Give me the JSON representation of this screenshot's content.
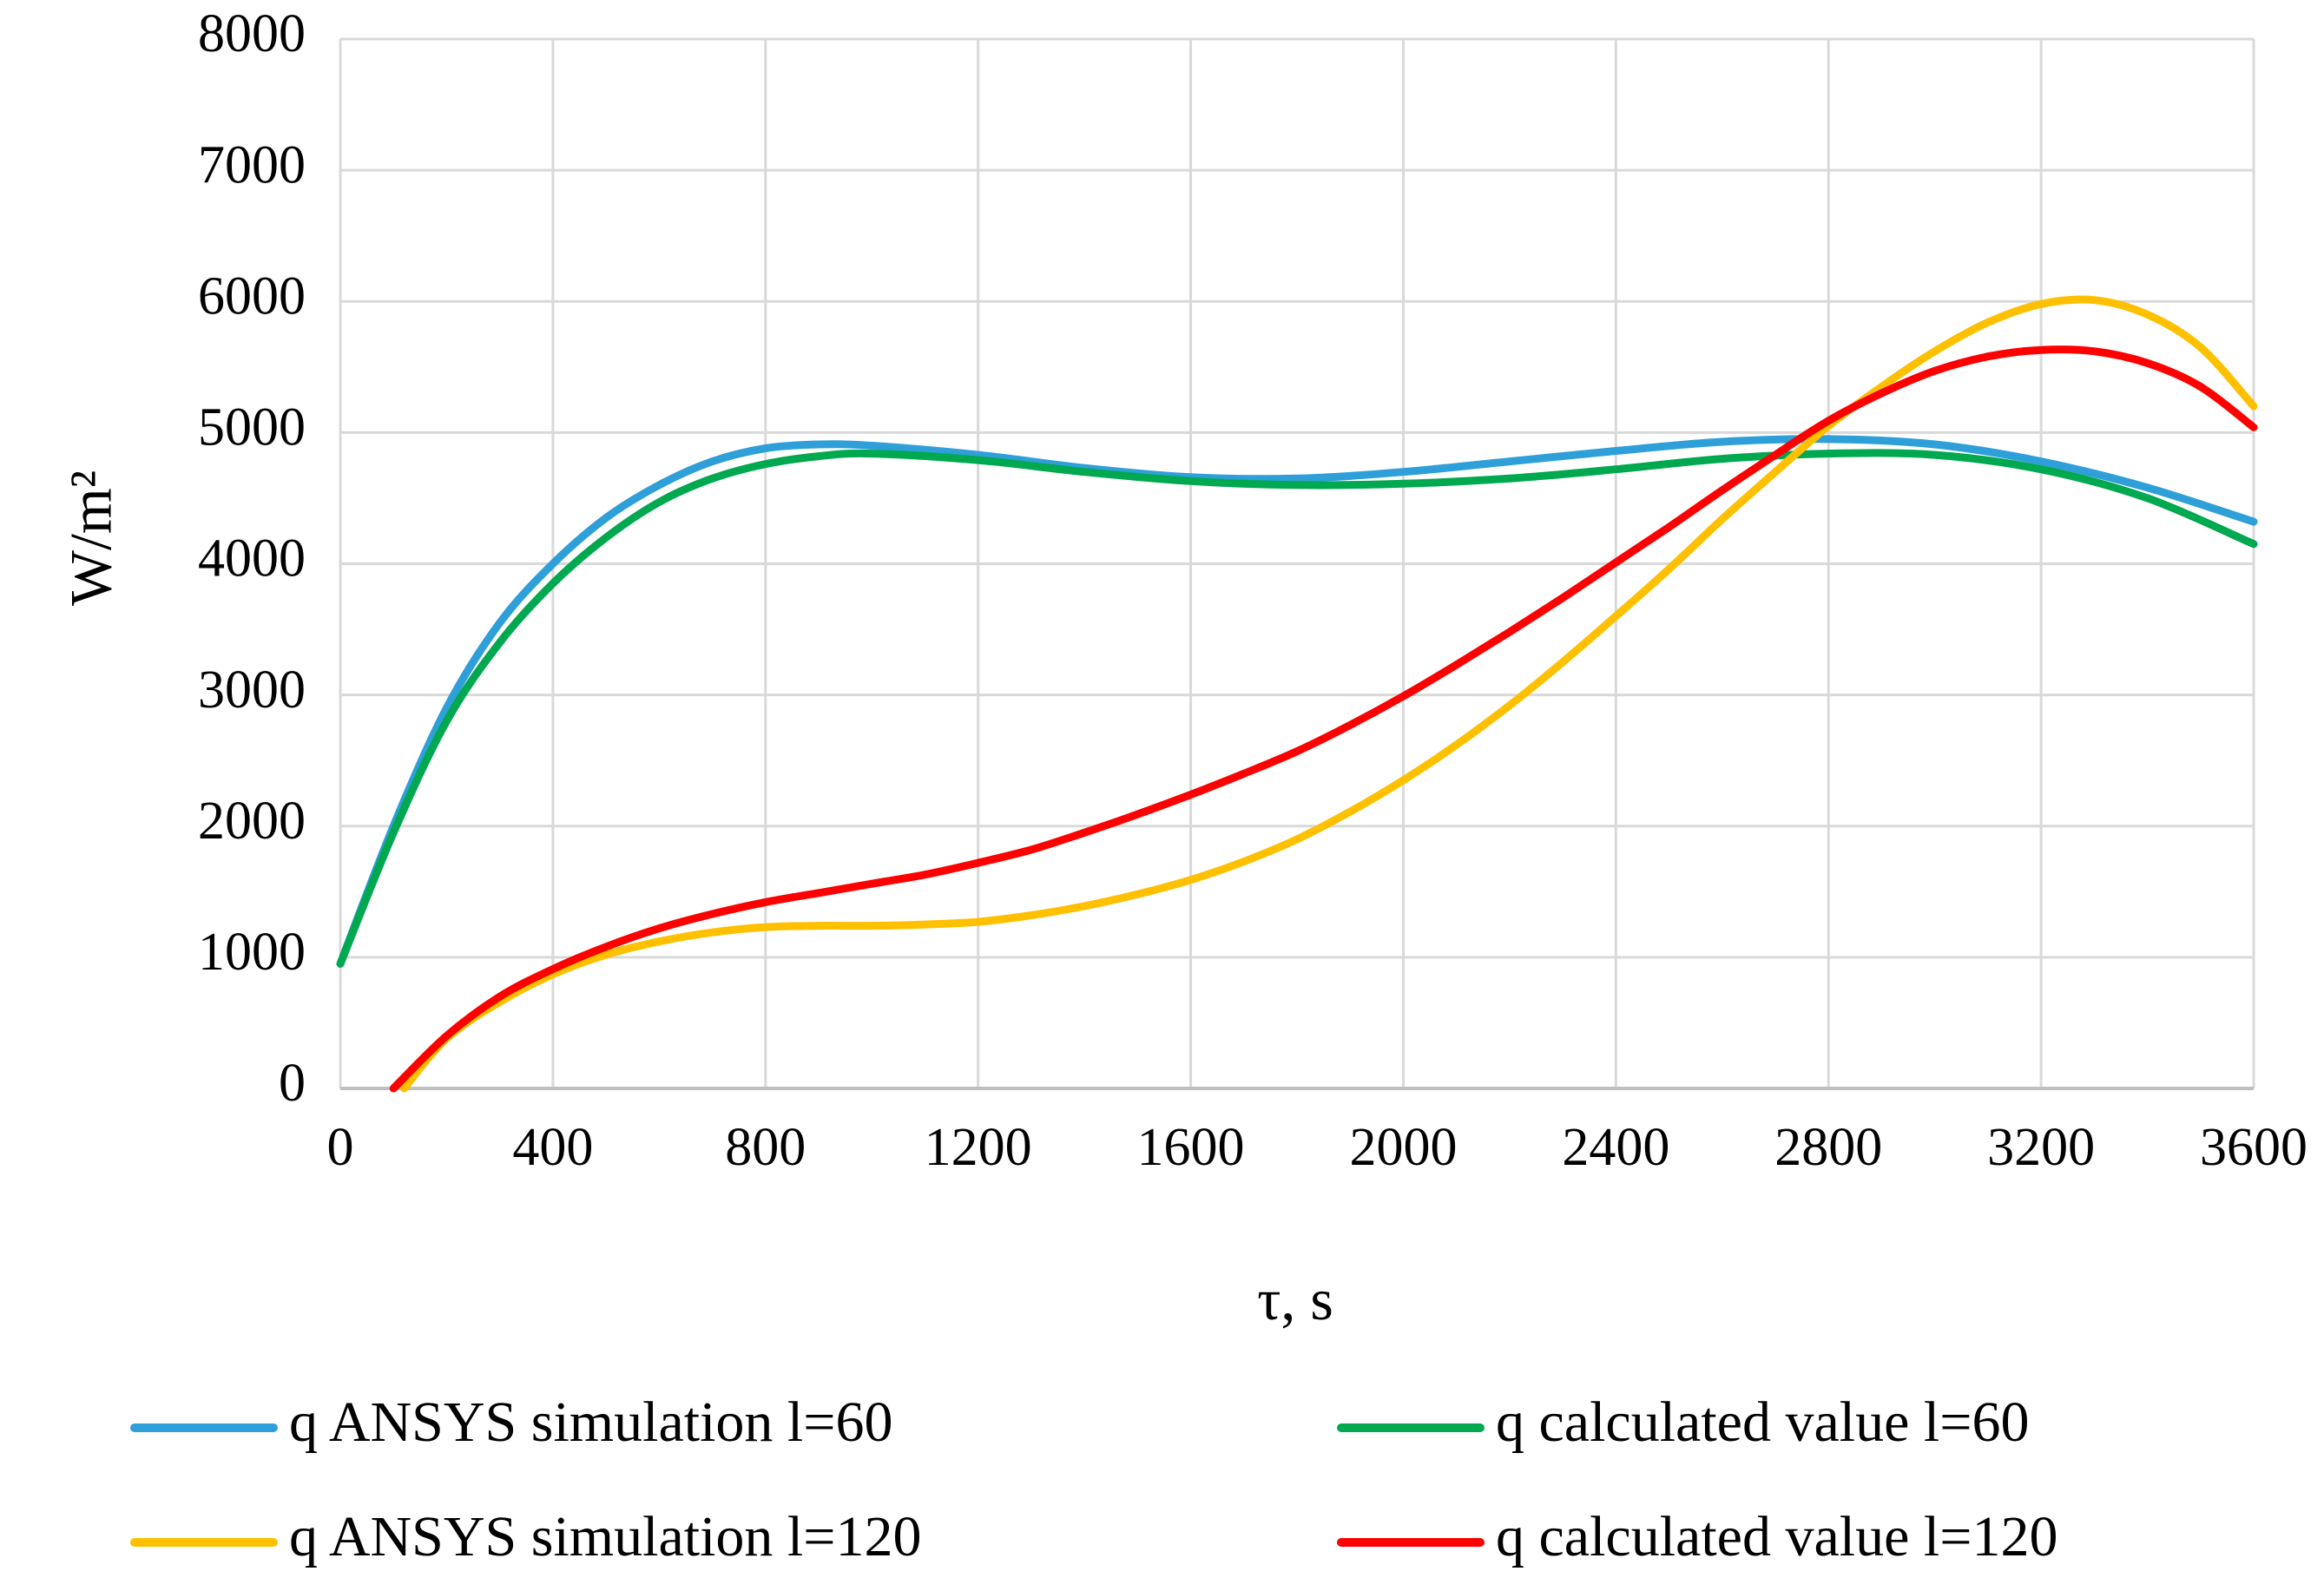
{
  "chart_data": {
    "type": "line",
    "title": "",
    "xlabel": "τ, s",
    "ylabel": "W/m²",
    "xlim": [
      0,
      3600
    ],
    "ylim": [
      0,
      8000
    ],
    "xticks": [
      0,
      400,
      800,
      1200,
      1600,
      2000,
      2400,
      2800,
      3200,
      3600
    ],
    "yticks": [
      0,
      1000,
      2000,
      3000,
      4000,
      5000,
      6000,
      7000,
      8000
    ],
    "grid": true,
    "legend_position": "bottom",
    "series": [
      {
        "name": "q ANSYS simulation l=60",
        "color": "#2e9fd8",
        "x": [
          0,
          100,
          200,
          300,
          400,
          500,
          600,
          700,
          800,
          900,
          1000,
          1200,
          1400,
          1600,
          1800,
          2000,
          2200,
          2400,
          2600,
          2800,
          3000,
          3200,
          3400,
          3600
        ],
        "y": [
          950,
          2000,
          2900,
          3550,
          4000,
          4350,
          4600,
          4780,
          4880,
          4910,
          4900,
          4830,
          4730,
          4660,
          4650,
          4700,
          4780,
          4860,
          4930,
          4950,
          4910,
          4780,
          4580,
          4320
        ]
      },
      {
        "name": "q calculated value l=60",
        "color": "#00a84f",
        "x": [
          0,
          100,
          200,
          300,
          400,
          500,
          600,
          700,
          800,
          900,
          1000,
          1200,
          1400,
          1600,
          1800,
          2000,
          2200,
          2400,
          2600,
          2800,
          3000,
          3200,
          3400,
          3600
        ],
        "y": [
          950,
          1950,
          2800,
          3400,
          3850,
          4200,
          4470,
          4650,
          4760,
          4820,
          4840,
          4790,
          4700,
          4630,
          4600,
          4610,
          4650,
          4720,
          4800,
          4840,
          4830,
          4720,
          4500,
          4150
        ]
      },
      {
        "name": "q ANSYS simulation l=120",
        "color": "#ffc000",
        "x": [
          120,
          200,
          300,
          400,
          500,
          600,
          700,
          800,
          900,
          1000,
          1100,
          1200,
          1300,
          1400,
          1500,
          1600,
          1700,
          1800,
          1900,
          2000,
          2100,
          2200,
          2300,
          2400,
          2500,
          2600,
          2700,
          2800,
          2900,
          3000,
          3100,
          3200,
          3300,
          3400,
          3500,
          3600
        ],
        "y": [
          0,
          380,
          660,
          870,
          1020,
          1120,
          1190,
          1230,
          1240,
          1240,
          1250,
          1270,
          1320,
          1390,
          1480,
          1590,
          1730,
          1900,
          2110,
          2350,
          2620,
          2920,
          3250,
          3600,
          3960,
          4340,
          4700,
          5050,
          5350,
          5620,
          5840,
          5980,
          6010,
          5900,
          5650,
          5200
        ]
      },
      {
        "name": "q calculated value l=120",
        "color": "#ff0000",
        "x": [
          100,
          200,
          300,
          400,
          500,
          600,
          700,
          800,
          900,
          1000,
          1100,
          1200,
          1300,
          1400,
          1500,
          1600,
          1700,
          1800,
          1900,
          2000,
          2100,
          2200,
          2300,
          2400,
          2500,
          2600,
          2700,
          2800,
          2900,
          3000,
          3100,
          3200,
          3300,
          3400,
          3500,
          3600
        ],
        "y": [
          0,
          400,
          700,
          910,
          1080,
          1220,
          1330,
          1420,
          1490,
          1560,
          1630,
          1720,
          1820,
          1950,
          2090,
          2240,
          2400,
          2570,
          2770,
          2990,
          3230,
          3480,
          3740,
          4010,
          4280,
          4560,
          4830,
          5090,
          5300,
          5470,
          5580,
          5630,
          5620,
          5530,
          5350,
          5040
        ]
      }
    ]
  }
}
